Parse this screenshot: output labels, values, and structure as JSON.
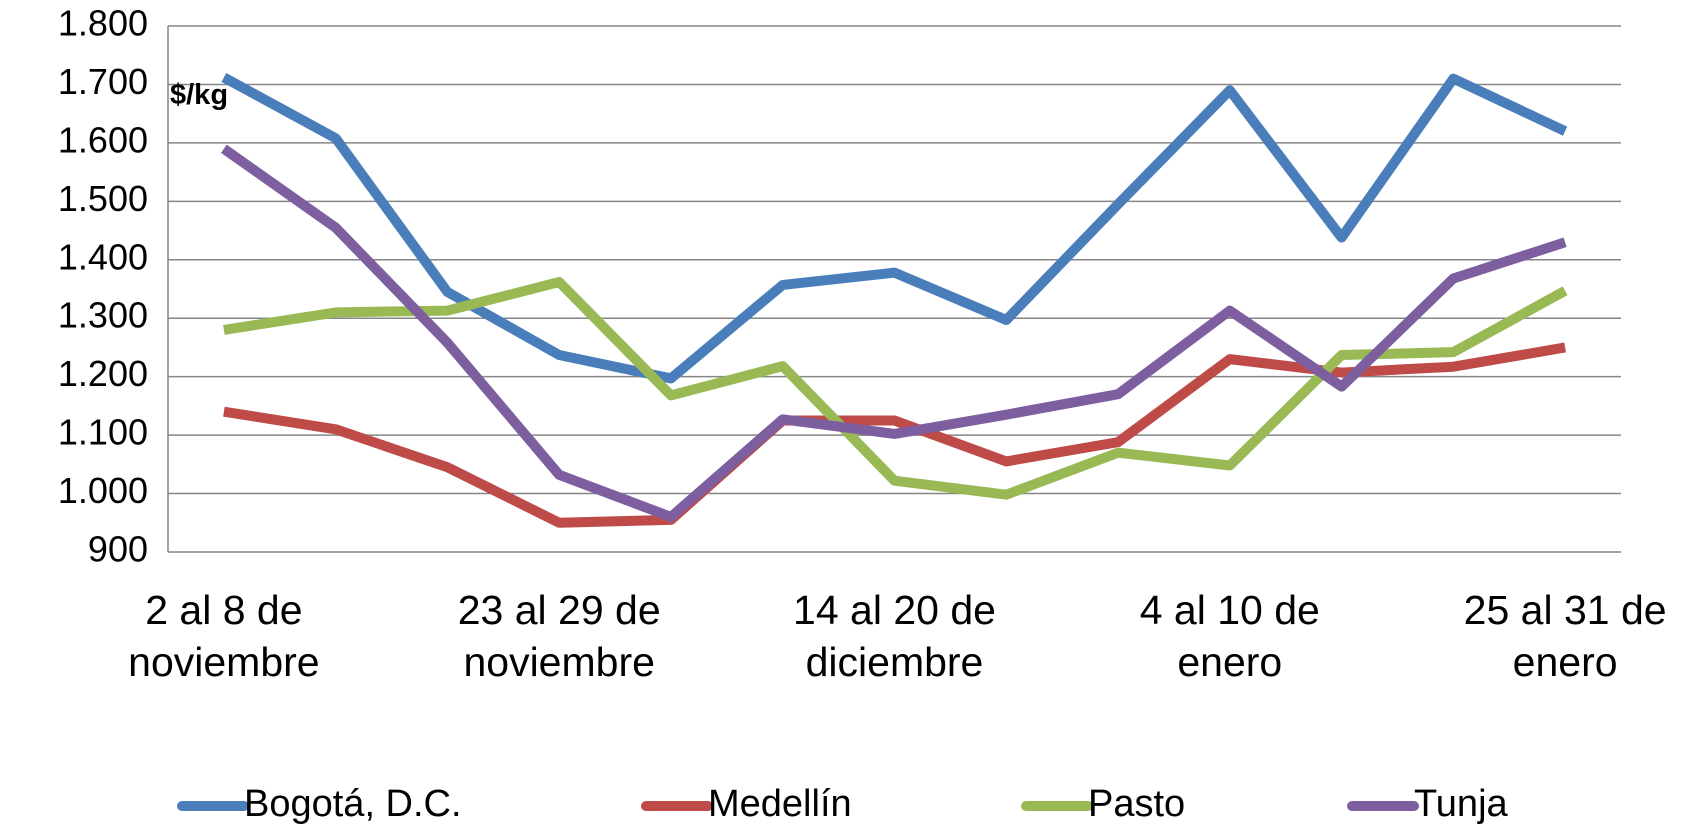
{
  "chart_data": {
    "type": "line",
    "unit_label": "$/kg",
    "categories": [
      "2 al 8 de noviembre",
      null,
      null,
      "23 al 29 de noviembre",
      null,
      null,
      "14 al 20 de diciembre",
      null,
      null,
      "4 al 10 de enero",
      null,
      null,
      "25 al 31 de enero"
    ],
    "series": [
      {
        "name": "Bogotá, D.C.",
        "color": "#4a7ebb",
        "values": [
          1712,
          1608,
          1345,
          1237,
          1197,
          1357,
          1378,
          1297,
          1495,
          1690,
          1438,
          1710,
          1620
        ]
      },
      {
        "name": "Medellín",
        "color": "#be4b48",
        "values": [
          1140,
          1110,
          1045,
          950,
          955,
          1125,
          1125,
          1055,
          1088,
          1230,
          1207,
          1217,
          1250
        ]
      },
      {
        "name": "Pasto",
        "color": "#98b954",
        "values": [
          1280,
          1310,
          1313,
          1362,
          1168,
          1218,
          1022,
          998,
          1070,
          1048,
          1237,
          1242,
          1347
        ]
      },
      {
        "name": "Tunja",
        "color": "#7d5fa0",
        "values": [
          1590,
          1455,
          1258,
          1032,
          960,
          1127,
          1102,
          1135,
          1170,
          1313,
          1183,
          1368,
          1430
        ]
      }
    ],
    "ylim": [
      900,
      1800
    ],
    "yticks": [
      900,
      {
        "value": 1000,
        "label": "1.000"
      },
      {
        "value": 1100,
        "label": "1.100"
      },
      {
        "value": 1200,
        "label": "1.200"
      },
      {
        "value": 1300,
        "label": "1.300"
      },
      {
        "value": 1400,
        "label": "1.400"
      },
      {
        "value": 1500,
        "label": "1.500"
      },
      {
        "value": 1600,
        "label": "1.600"
      },
      {
        "value": 1700,
        "label": "1.700"
      },
      {
        "value": 1800,
        "label": "1.800"
      }
    ],
    "grid": true,
    "legend": "bottom"
  }
}
